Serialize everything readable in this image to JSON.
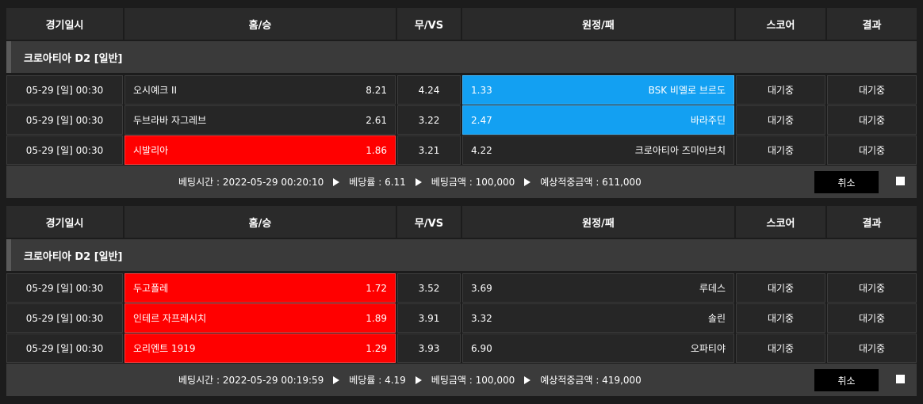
{
  "bets": [
    {
      "headers": [
        "경기일시",
        "홈/승",
        "무/VS",
        "원정/패",
        "스코어",
        "결과"
      ],
      "league": "크로아티아 D2 [일반]",
      "rows": [
        {
          "time": "05-29 [일] 00:30",
          "home": "오시예크 II",
          "home_odds": "8.21",
          "draw": "4.24",
          "away_odds": "1.33",
          "away": "BSK 비엘로 브르도",
          "score": "대기중",
          "result": "대기중",
          "pick": "away"
        },
        {
          "time": "05-29 [일] 00:30",
          "home": "두브라바 자그레브",
          "home_odds": "2.61",
          "draw": "3.22",
          "away_odds": "2.47",
          "away": "바라주딘",
          "score": "대기중",
          "result": "대기중",
          "pick": "away"
        },
        {
          "time": "05-29 [일] 00:30",
          "home": "시발리아",
          "home_odds": "1.86",
          "draw": "3.21",
          "away_odds": "4.22",
          "away": "크로아티아 즈미아브치",
          "score": "대기중",
          "result": "대기중",
          "pick": "home"
        }
      ],
      "footer": [
        "베팅시간 : 2022-05-29 00:20:10",
        "베당률 : 6.11",
        "베팅금액 : 100,000",
        "예상적중금액 : 611,000"
      ],
      "cancel": "취소"
    },
    {
      "headers": [
        "경기일시",
        "홈/승",
        "무/VS",
        "원정/패",
        "스코어",
        "결과"
      ],
      "league": "크로아티아 D2 [일반]",
      "rows": [
        {
          "time": "05-29 [일] 00:30",
          "home": "두고폴레",
          "home_odds": "1.72",
          "draw": "3.52",
          "away_odds": "3.69",
          "away": "루데스",
          "score": "대기중",
          "result": "대기중",
          "pick": "home"
        },
        {
          "time": "05-29 [일] 00:30",
          "home": "인테르 자프레시치",
          "home_odds": "1.89",
          "draw": "3.91",
          "away_odds": "3.32",
          "away": "솔린",
          "score": "대기중",
          "result": "대기중",
          "pick": "home"
        },
        {
          "time": "05-29 [일] 00:30",
          "home": "오리엔트 1919",
          "home_odds": "1.29",
          "draw": "3.93",
          "away_odds": "6.90",
          "away": "오파티야",
          "score": "대기중",
          "result": "대기중",
          "pick": "home"
        }
      ],
      "footer": [
        "베팅시간 : 2022-05-29 00:19:59",
        "베당률 : 4.19",
        "베팅금액 : 100,000",
        "예상적중금액 : 419,000"
      ],
      "cancel": "취소"
    }
  ]
}
